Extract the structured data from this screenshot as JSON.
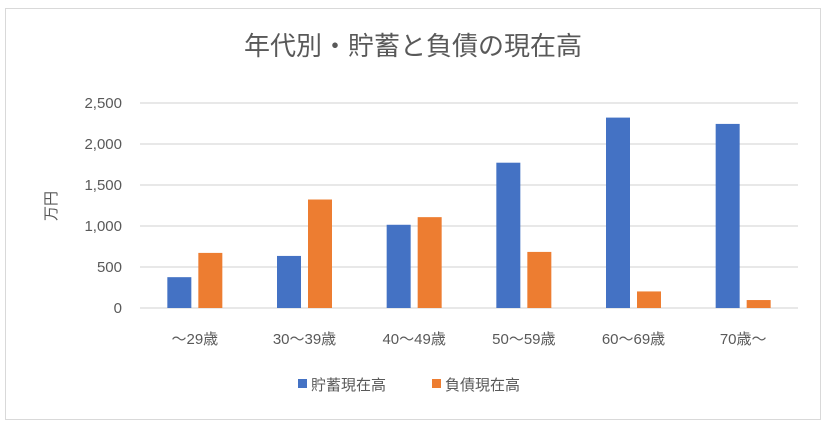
{
  "chart_data": {
    "type": "bar",
    "title": "年代別・貯蓄と負債の現在高",
    "xlabel": "",
    "ylabel": "万円",
    "ylim": [
      0,
      2500
    ],
    "yticks": [
      0,
      500,
      1000,
      1500,
      2000,
      2500
    ],
    "ytick_labels": [
      "0",
      "500",
      "1,000",
      "1,500",
      "2,000",
      "2,500"
    ],
    "grid": true,
    "legend_position": "bottom",
    "categories": [
      "～29歳",
      "30～39歳",
      "40～49歳",
      "50～59歳",
      "60～69歳",
      "70歳～"
    ],
    "series": [
      {
        "name": "貯蓄現在高",
        "color": "#4472c4",
        "values": [
          376,
          635,
          1015,
          1772,
          2322,
          2245
        ]
      },
      {
        "name": "負債現在高",
        "color": "#ed7d31",
        "values": [
          672,
          1323,
          1108,
          684,
          202,
          97
        ]
      }
    ]
  }
}
